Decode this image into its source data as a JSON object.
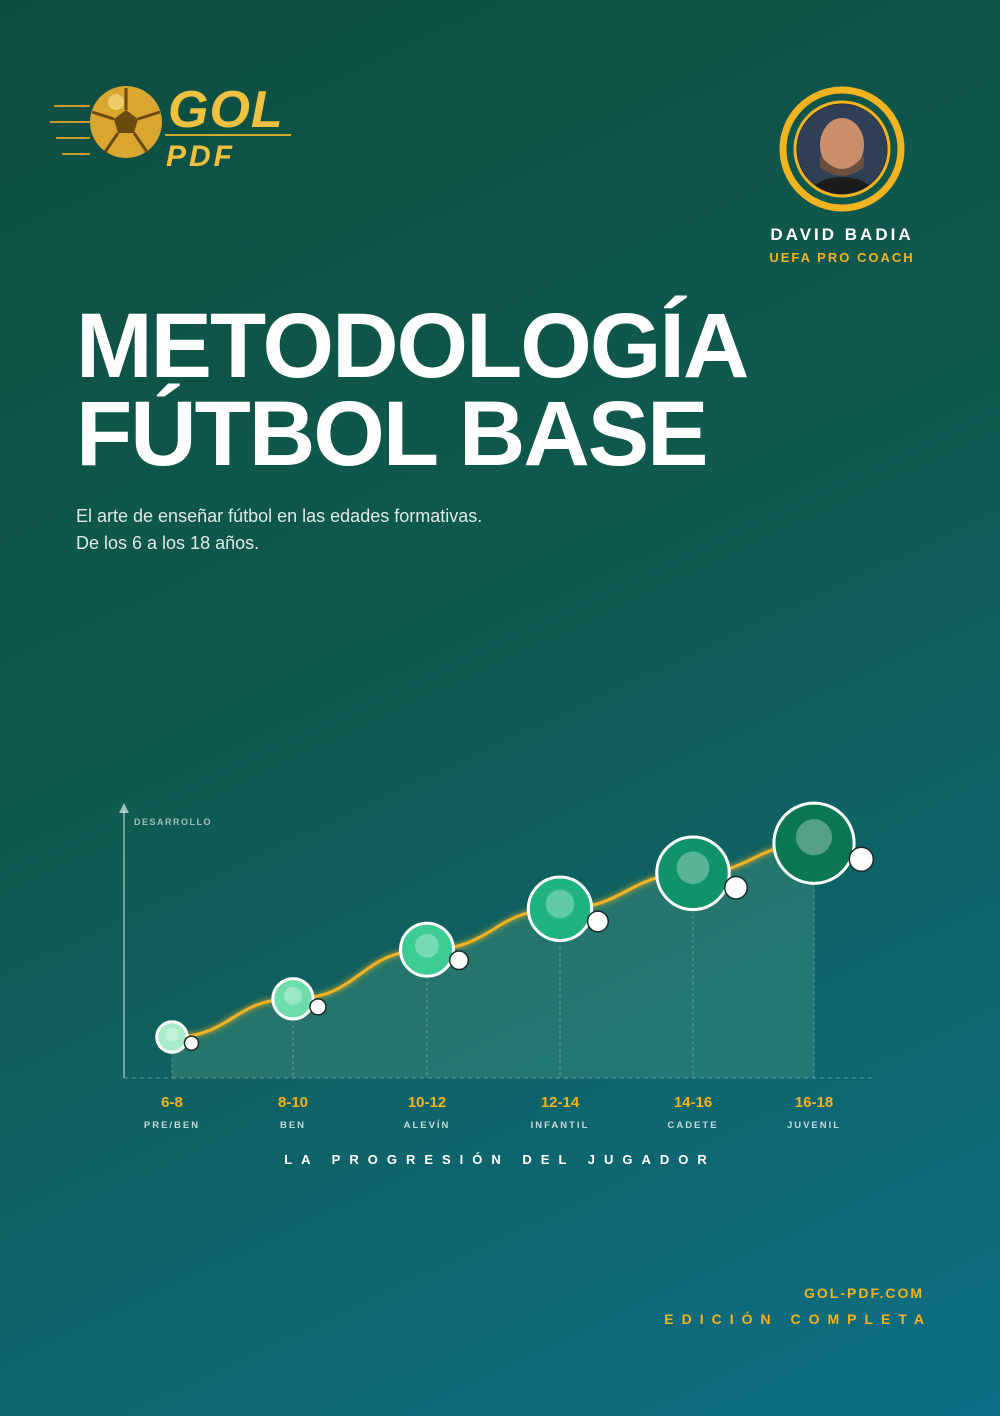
{
  "header": {
    "logo_top": "GOL",
    "logo_bottom": "PDF",
    "author_name": "DAVID BADIA",
    "author_role": "UEFA PRO COACH"
  },
  "title": {
    "lines": [
      "METODOLOGÍA",
      "FÚTBOL BASE"
    ]
  },
  "subtitle": {
    "lines": [
      "El arte de enseñar fútbol en las edades formativas.",
      "De los 6 a los 18 años."
    ]
  },
  "chart_data": {
    "type": "line",
    "y_label": "DESARROLLO",
    "x_title": "LA PROGRESIÓN DEL JUGADOR",
    "categories": [
      "6-8",
      "8-10",
      "10-12",
      "12-14",
      "14-16",
      "16-18"
    ],
    "category_sublabels": [
      "PRE/BEN",
      "BEN",
      "ALEVÍN",
      "INFANTIL",
      "CADETE",
      "JUVENIL"
    ],
    "values": [
      15,
      29,
      47,
      62,
      75,
      86
    ],
    "colors": [
      "#a8ecc9",
      "#6fdcac",
      "#3ccc94",
      "#1fb383",
      "#10936a",
      "#0b7653"
    ],
    "line_color": "#f2b321",
    "ylim": [
      0,
      100
    ]
  },
  "footer": {
    "site": "GOL-PDF.COM",
    "edition": "EDICIÓN COMPLETA"
  }
}
